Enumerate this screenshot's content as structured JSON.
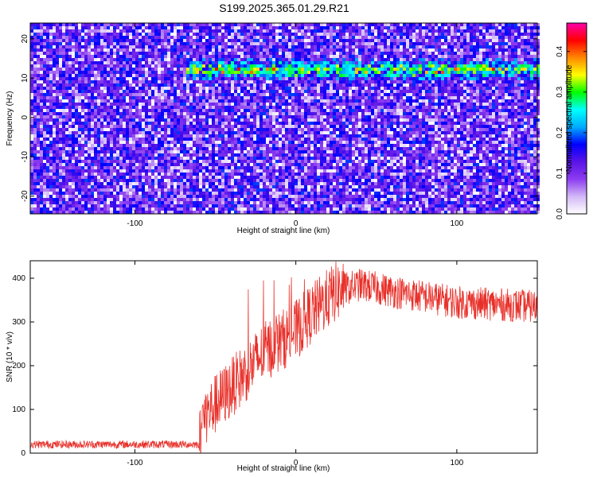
{
  "title": "S199.2025.365.01.29.R21",
  "chart_data": [
    {
      "type": "heatmap",
      "xlabel": "Height of straight line (km)",
      "ylabel": "Frequency (Hz)",
      "xlim": [
        -165,
        150
      ],
      "ylim": [
        -24.5,
        24
      ],
      "xticks": [
        -100,
        0,
        100
      ],
      "yticks": [
        -20,
        -10,
        0,
        10,
        20
      ],
      "colorbar": {
        "label": "Normalized spectral amplitude",
        "range": [
          0,
          0.47
        ],
        "ticks": [
          0.0,
          0.1,
          0.2,
          0.3,
          0.4
        ],
        "tick_labels": [
          "0.0",
          "0.1",
          "0.2",
          "0.3",
          "0.4"
        ],
        "colormap": [
          "#ffffff",
          "#d2b8f6",
          "#8c3cf0",
          "#5a14e6",
          "#0000ff",
          "#00aaff",
          "#00ffff",
          "#00ff00",
          "#ffff00",
          "#ff8800",
          "#ff0000",
          "#ff00aa"
        ]
      },
      "ridge": {
        "frequency_hz": 12.5,
        "x_range_km": [
          -70,
          150
        ]
      }
    },
    {
      "type": "line",
      "xlabel": "Height of straight line (km)",
      "ylabel": "SNR (10 * v/v)",
      "xlim": [
        -165,
        150
      ],
      "ylim": [
        0,
        440
      ],
      "xticks": [
        -100,
        0,
        100
      ],
      "yticks": [
        0,
        100,
        200,
        300,
        400
      ],
      "series": [
        {
          "color": "#e8302a",
          "x": [
            -165,
            -60,
            -58,
            -40,
            -20,
            0,
            10,
            25,
            40,
            60,
            100,
            150
          ],
          "y": [
            20,
            20,
            80,
            150,
            230,
            280,
            320,
            370,
            385,
            370,
            345,
            335
          ]
        }
      ]
    }
  ]
}
